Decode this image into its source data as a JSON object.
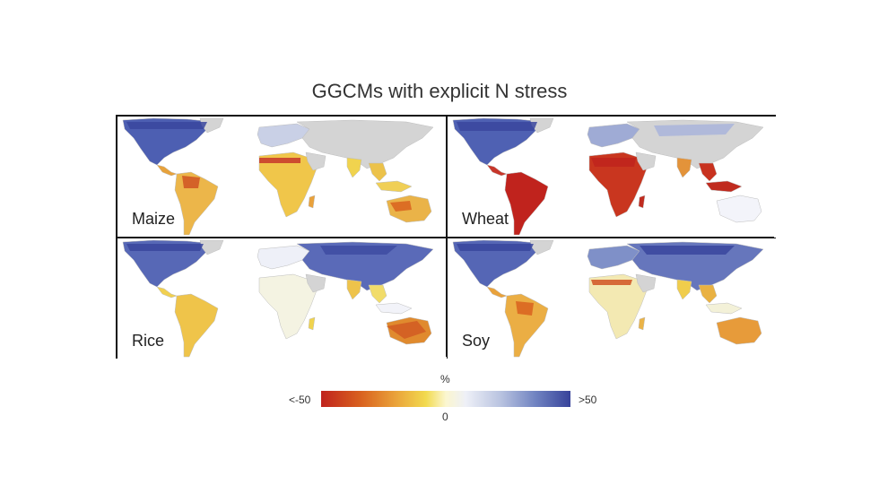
{
  "title": "GGCMs with explicit N stress",
  "panels": [
    {
      "crop": "Maize",
      "theme": "maize"
    },
    {
      "crop": "Wheat",
      "theme": "wheat"
    },
    {
      "crop": "Rice",
      "theme": "rice"
    },
    {
      "crop": "Soy",
      "theme": "soy"
    }
  ],
  "legend": {
    "unit": "%",
    "min_label": "<-50",
    "max_label": ">50",
    "zero_label": "0",
    "scale_min": -50,
    "scale_max": 50,
    "colors": [
      "#c0231d",
      "#d9621f",
      "#eaa33a",
      "#f2da4e",
      "#fbf6cf",
      "#eef0f7",
      "#b9c3e0",
      "#7083c1",
      "#37439a"
    ]
  },
  "map_colors": {
    "land_no_data": "#d4d4d4",
    "ocean": "#ffffff",
    "positive": "#4a5bb0",
    "negative_strong": "#c0231d",
    "negative_mid": "#e08a2e",
    "negative_light": "#f2d44e"
  }
}
